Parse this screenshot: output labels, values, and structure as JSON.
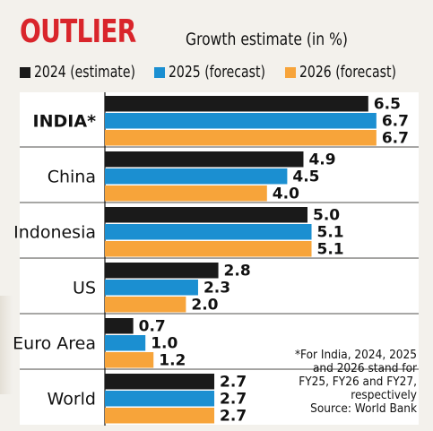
{
  "title": "OUTLIER",
  "subtitle": "Growth estimate (in %)",
  "footnote": {
    "lines": [
      "*For India, 2024, 2025",
      "and 2026 stand for",
      "FY25, FY26 and FY27,",
      "respectively"
    ],
    "source": "Source: World Bank"
  },
  "chart_data": {
    "type": "bar",
    "orientation": "horizontal",
    "title": "Growth estimate (in %)",
    "categories": [
      "INDIA*",
      "China",
      "Indonesia",
      "US",
      "Euro Area",
      "World"
    ],
    "series": [
      {
        "name": "2024 (estimate)",
        "color": "#1a1a1a",
        "values": [
          6.5,
          4.9,
          5.0,
          2.8,
          0.7,
          2.7
        ]
      },
      {
        "name": "2025 (forecast)",
        "color": "#1b8fd1",
        "values": [
          6.7,
          4.5,
          5.1,
          2.3,
          1.0,
          2.7
        ]
      },
      {
        "name": "2026 (forecast)",
        "color": "#f7a43a",
        "values": [
          6.7,
          4.0,
          5.1,
          2.0,
          1.2,
          2.7
        ]
      }
    ],
    "value_labels": [
      [
        "6.5",
        "6.7",
        "6.7"
      ],
      [
        "4.9",
        "4.5",
        "4.0"
      ],
      [
        "5.0",
        "5.1",
        "5.1"
      ],
      [
        "2.8",
        "2.3",
        "2.0"
      ],
      [
        "0.7",
        "1.0",
        "1.2"
      ],
      [
        "2.7",
        "2.7",
        "2.7"
      ]
    ],
    "emphasized_category": "INDIA*",
    "legend_position": "top",
    "grid": false
  }
}
